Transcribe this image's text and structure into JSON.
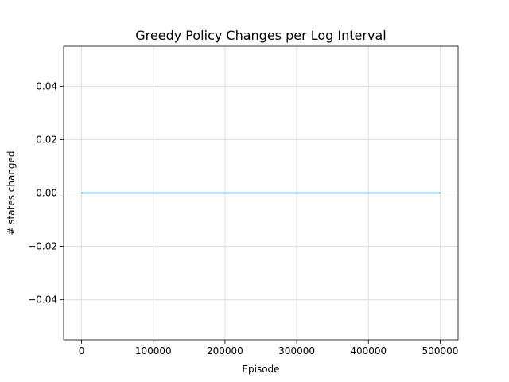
{
  "chart_data": {
    "type": "line",
    "title": "Greedy Policy Changes per Log Interval",
    "xlabel": "Episode",
    "ylabel": "# states changed",
    "xlim": [
      -25000,
      525000
    ],
    "ylim": [
      -0.055,
      0.055
    ],
    "grid": true,
    "x_ticks": [
      0,
      100000,
      200000,
      300000,
      400000,
      500000
    ],
    "x_tick_labels": [
      "0",
      "100000",
      "200000",
      "300000",
      "400000",
      "500000"
    ],
    "y_ticks": [
      -0.04,
      -0.02,
      0.0,
      0.02,
      0.04
    ],
    "y_tick_labels": [
      "−0.04",
      "−0.02",
      "0.00",
      "0.02",
      "0.04"
    ],
    "series": [
      {
        "color": "#1f77b4",
        "x": [
          0,
          500000
        ],
        "y": [
          0,
          0
        ]
      }
    ]
  }
}
